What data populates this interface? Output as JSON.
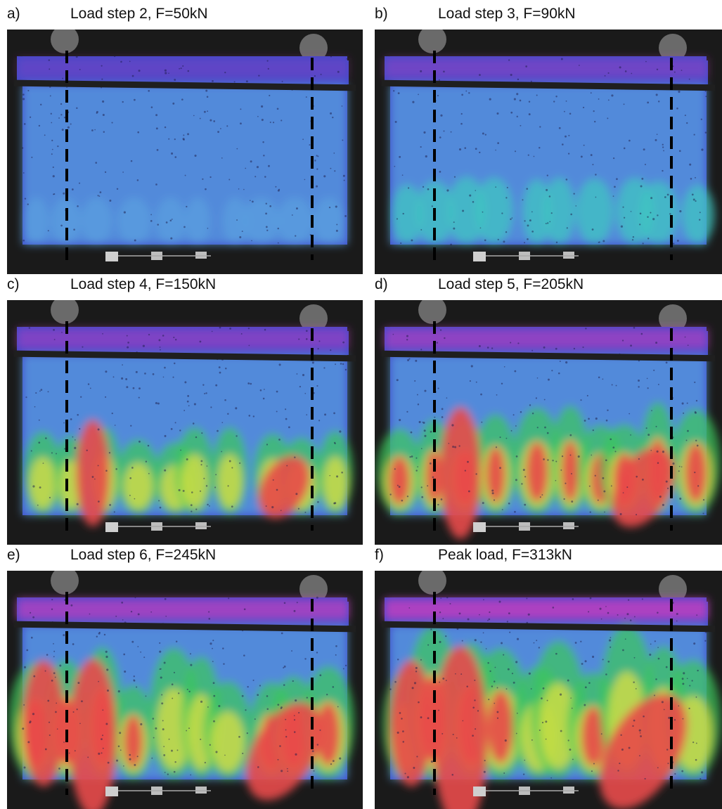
{
  "figure": {
    "panels": [
      {
        "letter": "a)",
        "caption": "Load step 2, F=50kN",
        "strain_level": 0
      },
      {
        "letter": "b)",
        "caption": "Load step 3, F=90kN",
        "strain_level": 1
      },
      {
        "letter": "c)",
        "caption": "Load step 4, F=150kN",
        "strain_level": 2
      },
      {
        "letter": "d)",
        "caption": "Load step 5, F=205kN",
        "strain_level": 3
      },
      {
        "letter": "e)",
        "caption": "Load step 6, F=245kN",
        "strain_level": 4
      },
      {
        "letter": "f)",
        "caption": "Peak load, F=313kN",
        "strain_level": 5
      }
    ],
    "colormap": [
      "#3f48c8",
      "#5aa0e0",
      "#3fc8c0",
      "#3cc85a",
      "#e0e040",
      "#e84a4a",
      "#c040c0"
    ]
  }
}
